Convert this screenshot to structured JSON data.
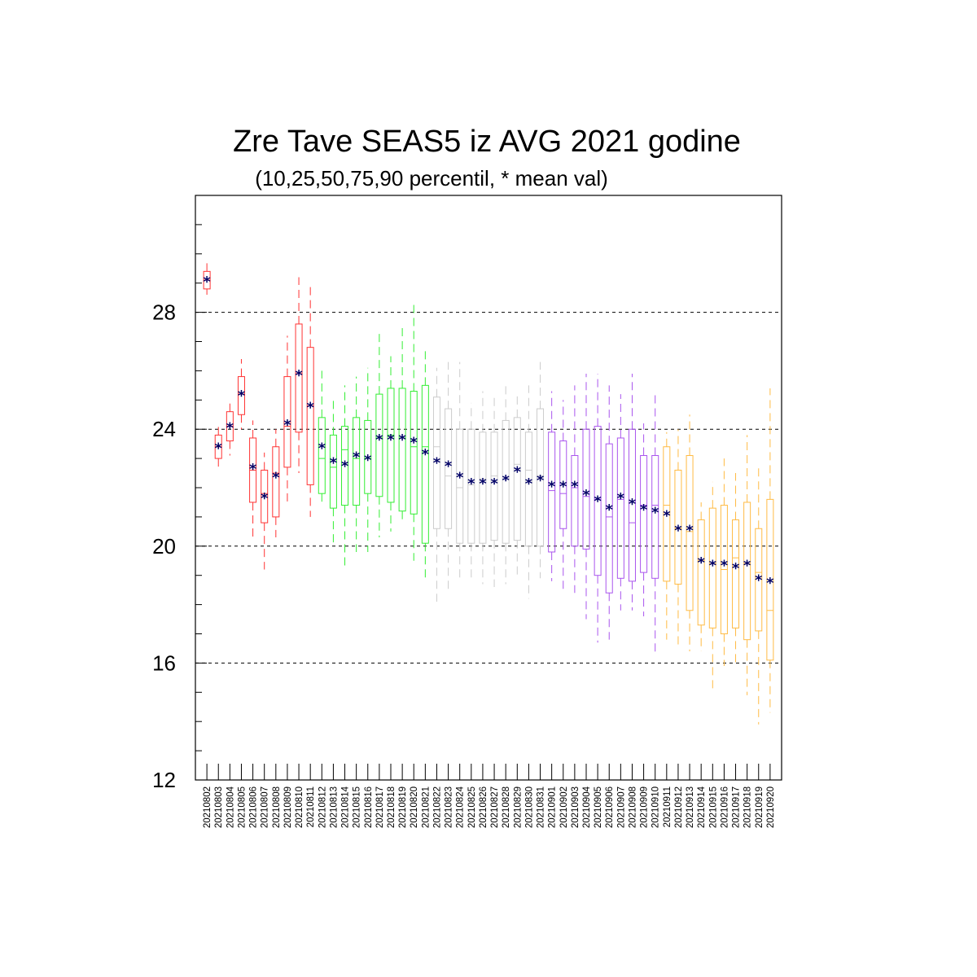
{
  "chart_data": {
    "type": "box",
    "title": "Zre Tave SEAS5 iz AVG 2021 godine",
    "subtitle": "(10,25,50,75,90 percentil, * mean val)",
    "ylim": [
      12,
      32
    ],
    "yticks": [
      12,
      16,
      20,
      24,
      28
    ],
    "yticks_minor_step": 1,
    "grid_y": [
      16,
      20,
      24,
      28
    ],
    "mean_color": "#000066",
    "categories": [
      "20210802",
      "20210803",
      "20210804",
      "20210805",
      "20210806",
      "20210807",
      "20210808",
      "20210809",
      "20210810",
      "20210811",
      "20210812",
      "20210813",
      "20210814",
      "20210815",
      "20210816",
      "20210817",
      "20210818",
      "20210819",
      "20210820",
      "20210821",
      "20210822",
      "20210823",
      "20210824",
      "20210825",
      "20210826",
      "20210827",
      "20210828",
      "20210829",
      "20210830",
      "20210831",
      "20210901",
      "20210902",
      "20210903",
      "20210904",
      "20210905",
      "20210906",
      "20210907",
      "20210908",
      "20210909",
      "20210910",
      "20210911",
      "20210912",
      "20210913",
      "20210914",
      "20210915",
      "20210916",
      "20210917",
      "20210918",
      "20210919",
      "20210920"
    ],
    "colors": [
      "#ff3333",
      "#ff3333",
      "#ff3333",
      "#ff3333",
      "#ff3333",
      "#ff3333",
      "#ff3333",
      "#ff3333",
      "#ff3333",
      "#ff3333",
      "#33ee33",
      "#33ee33",
      "#33ee33",
      "#33ee33",
      "#33ee33",
      "#33ee33",
      "#33ee33",
      "#33ee33",
      "#33ee33",
      "#33ee33",
      "#cccccc",
      "#cccccc",
      "#cccccc",
      "#cccccc",
      "#cccccc",
      "#cccccc",
      "#cccccc",
      "#cccccc",
      "#cccccc",
      "#cccccc",
      "#aa55ee",
      "#aa55ee",
      "#aa55ee",
      "#aa55ee",
      "#aa55ee",
      "#aa55ee",
      "#aa55ee",
      "#aa55ee",
      "#aa55ee",
      "#aa55ee",
      "#ffbb44",
      "#ffbb44",
      "#ffbb44",
      "#ffbb44",
      "#ffbb44",
      "#ffbb44",
      "#ffbb44",
      "#ffbb44",
      "#ffbb44",
      "#ffbb44"
    ],
    "p10": [
      28.6,
      22.7,
      23.1,
      24.0,
      20.3,
      19.2,
      20.3,
      21.5,
      22.5,
      21.0,
      21.5,
      20.0,
      19.2,
      19.8,
      19.8,
      20.3,
      20.5,
      20.8,
      19.5,
      18.8,
      18.1,
      18.5,
      18.8,
      18.8,
      18.7,
      18.6,
      18.7,
      18.9,
      18.2,
      18.9,
      18.8,
      18.5,
      18.4,
      17.5,
      16.7,
      16.8,
      17.8,
      17.8,
      17.6,
      16.3,
      16.8,
      16.6,
      16.4,
      16.4,
      15.0,
      15.9,
      15.9,
      14.9,
      13.9,
      14.3
    ],
    "p25": [
      28.8,
      23.0,
      23.6,
      24.5,
      21.5,
      20.8,
      21.0,
      22.7,
      23.9,
      22.1,
      21.8,
      21.3,
      21.4,
      21.4,
      21.8,
      21.7,
      21.5,
      21.2,
      21.1,
      20.1,
      20.6,
      20.6,
      20.1,
      20.1,
      20.1,
      20.2,
      20.1,
      20.2,
      20.0,
      20.0,
      19.8,
      20.6,
      20.0,
      19.9,
      19.0,
      18.4,
      18.9,
      18.8,
      19.1,
      18.9,
      18.8,
      18.7,
      17.8,
      17.3,
      17.2,
      17.0,
      17.2,
      16.8,
      17.1,
      16.1
    ],
    "p50": [
      29.1,
      23.4,
      24.1,
      25.2,
      22.6,
      21.8,
      22.5,
      24.1,
      25.9,
      24.8,
      23.0,
      22.7,
      23.3,
      23.0,
      23.0,
      23.7,
      23.8,
      23.7,
      23.4,
      23.4,
      23.4,
      22.4,
      22.0,
      22.1,
      22.3,
      22.4,
      22.3,
      22.8,
      22.6,
      22.4,
      21.9,
      21.8,
      22.0,
      21.7,
      21.6,
      21.0,
      21.6,
      20.8,
      21.4,
      21.4,
      21.4,
      20.6,
      20.5,
      19.5,
      19.4,
      19.2,
      19.6,
      19.4,
      19.1,
      17.8
    ],
    "p75": [
      29.4,
      23.8,
      24.6,
      25.8,
      23.7,
      22.6,
      23.4,
      25.8,
      27.6,
      26.8,
      24.4,
      23.8,
      24.1,
      24.4,
      24.3,
      25.2,
      25.4,
      25.4,
      25.3,
      25.5,
      25.1,
      24.7,
      24.0,
      24.0,
      23.9,
      23.9,
      24.3,
      24.4,
      23.9,
      24.7,
      23.9,
      23.6,
      23.1,
      24.0,
      24.1,
      23.5,
      23.7,
      24.0,
      23.1,
      23.1,
      23.4,
      22.6,
      23.1,
      20.9,
      21.3,
      21.4,
      20.9,
      21.5,
      20.6,
      21.6
    ],
    "p90": [
      29.7,
      24.1,
      25.0,
      26.4,
      24.3,
      23.2,
      24.0,
      27.2,
      29.2,
      29.0,
      26.0,
      25.1,
      25.5,
      25.8,
      26.1,
      27.4,
      26.5,
      27.6,
      28.3,
      26.7,
      26.1,
      26.3,
      26.3,
      24.9,
      25.3,
      25.1,
      25.5,
      25.2,
      25.5,
      26.3,
      25.3,
      25.0,
      25.5,
      25.9,
      25.9,
      25.5,
      25.2,
      25.9,
      24.2,
      25.3,
      23.9,
      24.0,
      24.5,
      21.5,
      22.2,
      23.0,
      22.5,
      23.8,
      22.7,
      25.4
    ],
    "mean": [
      29.1,
      23.4,
      24.1,
      25.2,
      22.7,
      21.7,
      22.4,
      24.2,
      25.9,
      24.8,
      23.4,
      22.9,
      22.8,
      23.1,
      23.0,
      23.7,
      23.7,
      23.7,
      23.6,
      23.2,
      22.9,
      22.8,
      22.4,
      22.2,
      22.2,
      22.2,
      22.3,
      22.6,
      22.2,
      22.3,
      22.1,
      22.1,
      22.1,
      21.8,
      21.6,
      21.3,
      21.7,
      21.5,
      21.3,
      21.2,
      21.1,
      20.6,
      20.6,
      19.5,
      19.4,
      19.4,
      19.3,
      19.4,
      18.9,
      18.8
    ],
    "mean_symbol": "*"
  }
}
